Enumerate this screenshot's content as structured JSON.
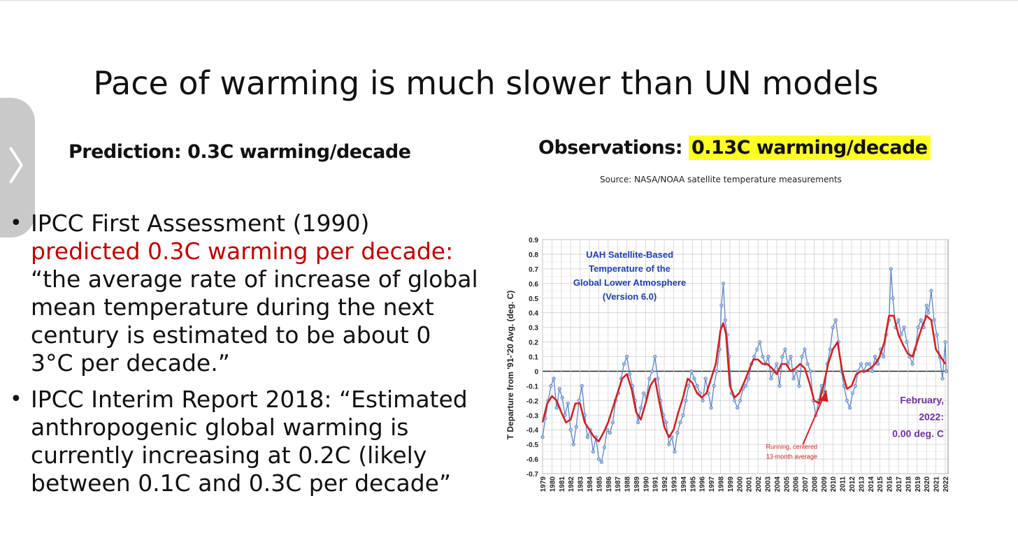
{
  "slide": {
    "nav_chevron": "〉",
    "title": "Pace of warming is much slower than UN models",
    "prediction_heading": "Prediction: 0.3C warming/decade",
    "observations_heading_prefix": "Observations: ",
    "observations_heading_highlight": "0.13C warming/decade",
    "source": "Source: NASA/NOAA satellite temperature measurements",
    "bullets": [
      {
        "line1": "IPCC First Assessment (1990)",
        "red": "predicted 0.3C warming per decade:",
        "quote": "“the average rate of increase of global mean temperature during the next century is estimated to be about 0 3°C per decade.”"
      },
      {
        "quote": "IPCC Interim Report 2018: “Estimated anthropogenic global warming is currently increasing at 0.2C (likely between 0.1C and 0.3C per decade”"
      }
    ]
  },
  "colors": {
    "highlight": "#ffff22",
    "red_text": "#c00000",
    "monthly_series": "#5b84c4",
    "running_avg": "#d42020",
    "chart_label_blue": "#1f3fb0",
    "chart_label_purple": "#7030a0"
  },
  "chart_data": {
    "type": "line",
    "ylabel": "T Departure from '91-'20 Avg. (deg. C)",
    "ylim": [
      -0.7,
      0.9
    ],
    "yticks": [
      "0.9",
      "0.8",
      "0.7",
      "0.6",
      "0.5",
      "0.4",
      "0.3",
      "0.2",
      "0.1",
      "0",
      "-0.1",
      "-0.2",
      "-0.3",
      "-0.4",
      "-0.5",
      "-0.6",
      "-0.7"
    ],
    "xlim": [
      1979,
      2022.3
    ],
    "xticks": [
      "1979",
      "1980",
      "1981",
      "1982",
      "1983",
      "1984",
      "1985",
      "1986",
      "1987",
      "1988",
      "1989",
      "1990",
      "1991",
      "1992",
      "1993",
      "1994",
      "1995",
      "1996",
      "1997",
      "1998",
      "1999",
      "2000",
      "2001",
      "2002",
      "2003",
      "2004",
      "2005",
      "2006",
      "2007",
      "2008",
      "2009",
      "2010",
      "2011",
      "2012",
      "2013",
      "2014",
      "2015",
      "2016",
      "2017",
      "2018",
      "2019",
      "2020",
      "2021",
      "2022"
    ],
    "grid": true,
    "annotations": {
      "title_box": [
        "UAH Satellite-Based",
        "Temperature of the",
        "Global Lower Atmosphere",
        "(Version 6.0)"
      ],
      "running_label": [
        "Running, centered",
        "13-month average"
      ],
      "latest_label": [
        "February,",
        "2022:",
        "0.00 deg. C"
      ]
    },
    "series": [
      {
        "style": "monthly",
        "x": [
          1979.0,
          1979.3,
          1979.6,
          1979.9,
          1980.2,
          1980.5,
          1980.8,
          1981.1,
          1981.4,
          1981.7,
          1982.0,
          1982.3,
          1982.6,
          1982.9,
          1983.2,
          1983.5,
          1983.8,
          1984.1,
          1984.4,
          1984.7,
          1985.0,
          1985.3,
          1985.6,
          1985.9,
          1986.2,
          1986.5,
          1986.8,
          1987.1,
          1987.4,
          1987.7,
          1988.0,
          1988.3,
          1988.6,
          1988.9,
          1989.2,
          1989.5,
          1989.8,
          1990.1,
          1990.4,
          1990.7,
          1991.0,
          1991.3,
          1991.6,
          1991.9,
          1992.2,
          1992.5,
          1992.8,
          1993.1,
          1993.4,
          1993.7,
          1994.0,
          1994.3,
          1994.6,
          1994.9,
          1995.2,
          1995.5,
          1995.8,
          1996.1,
          1996.4,
          1996.7,
          1997.0,
          1997.3,
          1997.6,
          1997.9,
          1998.1,
          1998.3,
          1998.5,
          1998.7,
          1998.9,
          1999.2,
          1999.5,
          1999.8,
          2000.1,
          2000.4,
          2000.7,
          2001.0,
          2001.3,
          2001.6,
          2001.9,
          2002.2,
          2002.5,
          2002.8,
          2003.1,
          2003.4,
          2003.7,
          2004.0,
          2004.3,
          2004.6,
          2004.9,
          2005.2,
          2005.5,
          2005.8,
          2006.1,
          2006.4,
          2006.7,
          2007.0,
          2007.3,
          2007.6,
          2007.9,
          2008.2,
          2008.5,
          2008.8,
          2009.1,
          2009.4,
          2009.7,
          2010.0,
          2010.3,
          2010.6,
          2010.9,
          2011.2,
          2011.5,
          2011.8,
          2012.1,
          2012.4,
          2012.7,
          2013.0,
          2013.3,
          2013.6,
          2013.9,
          2014.2,
          2014.5,
          2014.8,
          2015.1,
          2015.4,
          2015.7,
          2016.0,
          2016.2,
          2016.4,
          2016.7,
          2017.0,
          2017.3,
          2017.6,
          2017.9,
          2018.2,
          2018.5,
          2018.8,
          2019.1,
          2019.4,
          2019.7,
          2020.0,
          2020.2,
          2020.5,
          2020.8,
          2021.1,
          2021.4,
          2021.7,
          2022.0,
          2022.1
        ],
        "y": [
          -0.45,
          -0.32,
          -0.2,
          -0.1,
          -0.05,
          -0.25,
          -0.12,
          -0.18,
          -0.3,
          -0.22,
          -0.4,
          -0.5,
          -0.38,
          -0.2,
          -0.1,
          -0.3,
          -0.45,
          -0.4,
          -0.55,
          -0.45,
          -0.6,
          -0.62,
          -0.52,
          -0.4,
          -0.42,
          -0.35,
          -0.2,
          -0.15,
          -0.05,
          0.05,
          0.1,
          -0.02,
          -0.1,
          -0.2,
          -0.35,
          -0.25,
          -0.15,
          -0.18,
          -0.05,
          0.0,
          0.1,
          -0.05,
          -0.2,
          -0.3,
          -0.35,
          -0.5,
          -0.45,
          -0.55,
          -0.42,
          -0.35,
          -0.3,
          -0.2,
          -0.1,
          0.0,
          -0.05,
          -0.1,
          -0.15,
          -0.2,
          -0.05,
          -0.15,
          -0.25,
          -0.1,
          0.0,
          0.15,
          0.45,
          0.6,
          0.35,
          0.25,
          0.1,
          -0.15,
          -0.2,
          -0.25,
          -0.2,
          -0.12,
          -0.1,
          -0.05,
          0.05,
          0.1,
          0.15,
          0.2,
          0.1,
          0.05,
          0.1,
          -0.05,
          0.0,
          0.05,
          -0.1,
          0.1,
          0.15,
          0.05,
          0.1,
          -0.05,
          0.0,
          -0.1,
          0.1,
          0.15,
          0.05,
          0.0,
          -0.2,
          -0.3,
          -0.2,
          -0.1,
          -0.15,
          0.05,
          0.15,
          0.3,
          0.35,
          0.2,
          0.0,
          -0.1,
          -0.2,
          -0.25,
          -0.15,
          -0.1,
          0.0,
          0.05,
          0.0,
          0.05,
          0.05,
          0.0,
          0.1,
          0.05,
          0.15,
          0.1,
          0.25,
          0.35,
          0.7,
          0.5,
          0.3,
          0.35,
          0.25,
          0.3,
          0.2,
          0.1,
          0.05,
          0.15,
          0.3,
          0.35,
          0.3,
          0.45,
          0.4,
          0.55,
          0.35,
          0.25,
          0.1,
          -0.05,
          0.2,
          0.0
        ]
      },
      {
        "style": "running",
        "x": [
          1979.0,
          1979.5,
          1980.0,
          1980.5,
          1981.0,
          1981.5,
          1982.0,
          1982.5,
          1983.0,
          1983.5,
          1984.0,
          1984.5,
          1985.0,
          1985.5,
          1986.0,
          1986.5,
          1987.0,
          1987.5,
          1988.0,
          1988.5,
          1989.0,
          1989.5,
          1990.0,
          1990.5,
          1991.0,
          1991.5,
          1992.0,
          1992.5,
          1993.0,
          1993.5,
          1994.0,
          1994.5,
          1995.0,
          1995.5,
          1996.0,
          1996.5,
          1997.0,
          1997.5,
          1998.0,
          1998.3,
          1998.6,
          1999.0,
          1999.5,
          2000.0,
          2000.5,
          2001.0,
          2001.5,
          2002.0,
          2002.5,
          2003.0,
          2003.5,
          2004.0,
          2004.5,
          2005.0,
          2005.5,
          2006.0,
          2006.5,
          2007.0,
          2007.5,
          2008.0,
          2008.5,
          2009.0,
          2009.5,
          2010.0,
          2010.5,
          2011.0,
          2011.5,
          2012.0,
          2012.5,
          2013.0,
          2013.5,
          2014.0,
          2014.5,
          2015.0,
          2015.5,
          2016.0,
          2016.5,
          2017.0,
          2017.5,
          2018.0,
          2018.5,
          2019.0,
          2019.5,
          2020.0,
          2020.5,
          2021.0,
          2021.5,
          2022.0
        ],
        "y": [
          -0.35,
          -0.22,
          -0.17,
          -0.2,
          -0.28,
          -0.35,
          -0.33,
          -0.22,
          -0.22,
          -0.35,
          -0.4,
          -0.45,
          -0.48,
          -0.42,
          -0.35,
          -0.25,
          -0.15,
          -0.05,
          -0.02,
          -0.12,
          -0.28,
          -0.33,
          -0.22,
          -0.1,
          -0.05,
          -0.22,
          -0.38,
          -0.45,
          -0.4,
          -0.28,
          -0.18,
          -0.05,
          -0.08,
          -0.15,
          -0.18,
          -0.15,
          -0.05,
          0.05,
          0.28,
          0.33,
          0.25,
          -0.1,
          -0.18,
          -0.15,
          -0.08,
          0.0,
          0.08,
          0.08,
          0.05,
          0.05,
          0.02,
          -0.02,
          0.05,
          0.05,
          0.0,
          0.02,
          0.05,
          0.02,
          -0.08,
          -0.2,
          -0.22,
          -0.1,
          0.05,
          0.15,
          0.2,
          0.0,
          -0.12,
          -0.1,
          -0.02,
          0.0,
          0.0,
          0.02,
          0.05,
          0.1,
          0.2,
          0.38,
          0.38,
          0.25,
          0.18,
          0.12,
          0.1,
          0.2,
          0.3,
          0.38,
          0.35,
          0.15,
          0.1,
          0.05
        ]
      }
    ]
  }
}
